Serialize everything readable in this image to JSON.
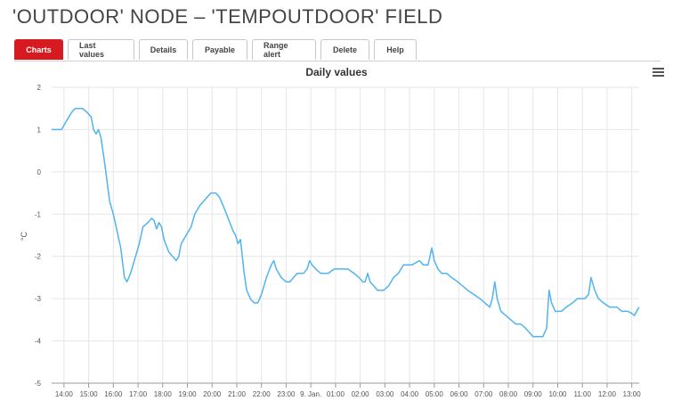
{
  "page": {
    "title": "'OUTDOOR' NODE – 'TEMPOUTDOOR' FIELD"
  },
  "tabs": [
    {
      "label": "Charts",
      "active": true
    },
    {
      "label": "Last values",
      "active": false
    },
    {
      "label": "Details",
      "active": false
    },
    {
      "label": "Payable",
      "active": false
    },
    {
      "label": "Range alert",
      "active": false
    },
    {
      "label": "Delete",
      "active": false
    },
    {
      "label": "Help",
      "active": false
    }
  ],
  "colors": {
    "accent": "#d71920",
    "series": "#4fb4f0",
    "grid": "#e6e6e6"
  },
  "icons": {
    "menu": "hamburger-menu-icon"
  },
  "chart_data": {
    "type": "line",
    "title": "Daily values",
    "ylabel": "°C",
    "xlabel": "",
    "ylim": [
      -5,
      2
    ],
    "yticks": [
      2,
      1,
      0,
      -1,
      -2,
      -3,
      -4,
      -5
    ],
    "xlim": [
      13.5,
      37.3
    ],
    "xticks": [
      {
        "v": 14,
        "label": "14:00"
      },
      {
        "v": 15,
        "label": "15:00"
      },
      {
        "v": 16,
        "label": "16:00"
      },
      {
        "v": 17,
        "label": "17:00"
      },
      {
        "v": 18,
        "label": "18:00"
      },
      {
        "v": 19,
        "label": "19:00"
      },
      {
        "v": 20,
        "label": "20:00"
      },
      {
        "v": 21,
        "label": "21:00"
      },
      {
        "v": 22,
        "label": "22:00"
      },
      {
        "v": 23,
        "label": "23:00"
      },
      {
        "v": 24,
        "label": "9. Jan."
      },
      {
        "v": 25,
        "label": "01:00"
      },
      {
        "v": 26,
        "label": "02:00"
      },
      {
        "v": 27,
        "label": "03:00"
      },
      {
        "v": 28,
        "label": "04:00"
      },
      {
        "v": 29,
        "label": "05:00"
      },
      {
        "v": 30,
        "label": "06:00"
      },
      {
        "v": 31,
        "label": "07:00"
      },
      {
        "v": 32,
        "label": "08:00"
      },
      {
        "v": 33,
        "label": "09:00"
      },
      {
        "v": 34,
        "label": "10:00"
      },
      {
        "v": 35,
        "label": "11:00"
      },
      {
        "v": 36,
        "label": "12:00"
      },
      {
        "v": 37,
        "label": "13:00"
      }
    ],
    "grid": true,
    "legend": "none",
    "series": [
      {
        "points": [
          [
            13.5,
            1.0
          ],
          [
            13.9,
            1.0
          ],
          [
            14.1,
            1.2
          ],
          [
            14.3,
            1.4
          ],
          [
            14.45,
            1.5
          ],
          [
            14.75,
            1.5
          ],
          [
            14.95,
            1.4
          ],
          [
            15.1,
            1.3
          ],
          [
            15.2,
            1.0
          ],
          [
            15.3,
            0.9
          ],
          [
            15.4,
            1.0
          ],
          [
            15.5,
            0.8
          ],
          [
            15.65,
            0.2
          ],
          [
            15.85,
            -0.7
          ],
          [
            16.0,
            -1.0
          ],
          [
            16.15,
            -1.4
          ],
          [
            16.3,
            -1.8
          ],
          [
            16.45,
            -2.5
          ],
          [
            16.55,
            -2.6
          ],
          [
            16.7,
            -2.4
          ],
          [
            16.9,
            -2.0
          ],
          [
            17.05,
            -1.7
          ],
          [
            17.2,
            -1.3
          ],
          [
            17.4,
            -1.2
          ],
          [
            17.55,
            -1.1
          ],
          [
            17.65,
            -1.15
          ],
          [
            17.75,
            -1.35
          ],
          [
            17.85,
            -1.2
          ],
          [
            17.95,
            -1.3
          ],
          [
            18.05,
            -1.6
          ],
          [
            18.25,
            -1.9
          ],
          [
            18.4,
            -2.0
          ],
          [
            18.55,
            -2.1
          ],
          [
            18.65,
            -2.0
          ],
          [
            18.75,
            -1.7
          ],
          [
            18.95,
            -1.5
          ],
          [
            19.15,
            -1.3
          ],
          [
            19.3,
            -1.0
          ],
          [
            19.5,
            -0.8
          ],
          [
            19.65,
            -0.7
          ],
          [
            19.8,
            -0.6
          ],
          [
            19.95,
            -0.5
          ],
          [
            20.15,
            -0.5
          ],
          [
            20.3,
            -0.6
          ],
          [
            20.45,
            -0.8
          ],
          [
            20.65,
            -1.1
          ],
          [
            20.85,
            -1.4
          ],
          [
            20.95,
            -1.5
          ],
          [
            21.05,
            -1.7
          ],
          [
            21.15,
            -1.6
          ],
          [
            21.3,
            -2.4
          ],
          [
            21.4,
            -2.8
          ],
          [
            21.55,
            -3.0
          ],
          [
            21.7,
            -3.1
          ],
          [
            21.85,
            -3.1
          ],
          [
            22.0,
            -2.9
          ],
          [
            22.2,
            -2.5
          ],
          [
            22.4,
            -2.2
          ],
          [
            22.5,
            -2.1
          ],
          [
            22.6,
            -2.3
          ],
          [
            22.8,
            -2.5
          ],
          [
            23.0,
            -2.6
          ],
          [
            23.15,
            -2.6
          ],
          [
            23.3,
            -2.5
          ],
          [
            23.45,
            -2.4
          ],
          [
            23.7,
            -2.4
          ],
          [
            23.85,
            -2.3
          ],
          [
            23.95,
            -2.1
          ],
          [
            24.05,
            -2.2
          ],
          [
            24.2,
            -2.3
          ],
          [
            24.4,
            -2.4
          ],
          [
            24.7,
            -2.4
          ],
          [
            24.95,
            -2.3
          ],
          [
            25.2,
            -2.3
          ],
          [
            25.5,
            -2.3
          ],
          [
            25.75,
            -2.4
          ],
          [
            25.95,
            -2.5
          ],
          [
            26.1,
            -2.6
          ],
          [
            26.2,
            -2.6
          ],
          [
            26.3,
            -2.4
          ],
          [
            26.4,
            -2.6
          ],
          [
            26.55,
            -2.7
          ],
          [
            26.7,
            -2.8
          ],
          [
            26.95,
            -2.8
          ],
          [
            27.15,
            -2.7
          ],
          [
            27.35,
            -2.5
          ],
          [
            27.55,
            -2.4
          ],
          [
            27.75,
            -2.2
          ],
          [
            28.1,
            -2.2
          ],
          [
            28.4,
            -2.1
          ],
          [
            28.55,
            -2.2
          ],
          [
            28.75,
            -2.2
          ],
          [
            28.9,
            -1.8
          ],
          [
            29.0,
            -2.1
          ],
          [
            29.15,
            -2.3
          ],
          [
            29.3,
            -2.4
          ],
          [
            29.5,
            -2.4
          ],
          [
            29.7,
            -2.5
          ],
          [
            29.95,
            -2.6
          ],
          [
            30.15,
            -2.7
          ],
          [
            30.35,
            -2.8
          ],
          [
            30.6,
            -2.9
          ],
          [
            30.85,
            -3.0
          ],
          [
            31.05,
            -3.1
          ],
          [
            31.25,
            -3.2
          ],
          [
            31.35,
            -3.0
          ],
          [
            31.45,
            -2.6
          ],
          [
            31.55,
            -3.0
          ],
          [
            31.7,
            -3.3
          ],
          [
            31.9,
            -3.4
          ],
          [
            32.1,
            -3.5
          ],
          [
            32.3,
            -3.6
          ],
          [
            32.5,
            -3.6
          ],
          [
            32.7,
            -3.7
          ],
          [
            32.85,
            -3.8
          ],
          [
            33.0,
            -3.9
          ],
          [
            33.4,
            -3.9
          ],
          [
            33.55,
            -3.7
          ],
          [
            33.65,
            -2.8
          ],
          [
            33.75,
            -3.1
          ],
          [
            33.9,
            -3.3
          ],
          [
            34.15,
            -3.3
          ],
          [
            34.35,
            -3.2
          ],
          [
            34.6,
            -3.1
          ],
          [
            34.8,
            -3.0
          ],
          [
            35.1,
            -3.0
          ],
          [
            35.25,
            -2.9
          ],
          [
            35.35,
            -2.5
          ],
          [
            35.5,
            -2.8
          ],
          [
            35.65,
            -3.0
          ],
          [
            35.85,
            -3.1
          ],
          [
            36.1,
            -3.2
          ],
          [
            36.4,
            -3.2
          ],
          [
            36.6,
            -3.3
          ],
          [
            36.85,
            -3.3
          ],
          [
            37.0,
            -3.35
          ],
          [
            37.1,
            -3.4
          ],
          [
            37.2,
            -3.3
          ],
          [
            37.3,
            -3.2
          ]
        ]
      }
    ]
  }
}
